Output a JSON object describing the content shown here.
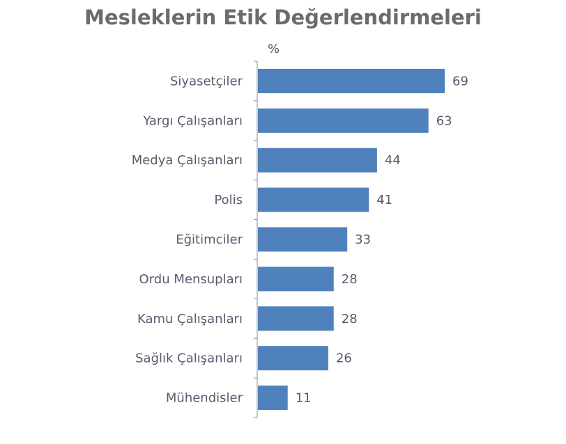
{
  "chart_data": {
    "type": "bar",
    "orientation": "horizontal",
    "title": "Mesleklerin Etik Değerlendirmeleri",
    "unit": "%",
    "categories": [
      "Siyasetçiler",
      "Yargı Çalışanları",
      "Medya Çalışanları",
      "Polis",
      "Eğitimciler",
      "Ordu Mensupları",
      "Kamu Çalışanları",
      "Sağlık Çalışanları",
      "Mühendisler"
    ],
    "values": [
      69,
      63,
      44,
      41,
      33,
      28,
      28,
      26,
      11
    ],
    "data_labels": true,
    "grid": false,
    "bar_color": "#4f81bd"
  }
}
